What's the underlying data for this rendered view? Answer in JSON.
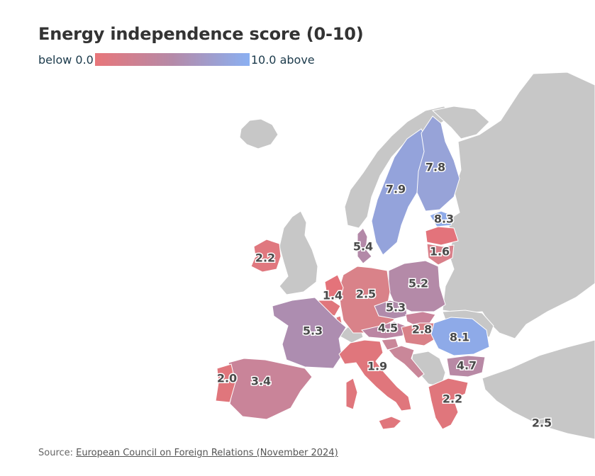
{
  "title": "Energy independence score (0-10)",
  "legend": {
    "min_label": "below 0.0",
    "max_label": "10.0 above",
    "min_color": "#e8767a",
    "mid_color": "#b58aa8",
    "max_color": "#8ab0f2"
  },
  "source": {
    "prefix": "Source: ",
    "link_text": "European Council on Foreign Relations (November 2024)"
  },
  "no_data_color": "#c7c7c7",
  "countries": [
    {
      "id": "ireland",
      "value": "2.2",
      "color": "#e0787f"
    },
    {
      "id": "denmark",
      "value": "5.4",
      "color": "#b389a8"
    },
    {
      "id": "sweden",
      "value": "7.9",
      "color": "#94a3db"
    },
    {
      "id": "finland",
      "value": "7.8",
      "color": "#97a3d8"
    },
    {
      "id": "estonia",
      "value": "8.3",
      "color": "#8eaae8"
    },
    {
      "id": "latvia",
      "value": "1.6",
      "color": "#e3737b"
    },
    {
      "id": "lithuania",
      "value": "",
      "color": "#d9808a"
    },
    {
      "id": "poland",
      "value": "5.2",
      "color": "#b48aa8"
    },
    {
      "id": "germany",
      "value": "2.5",
      "color": "#d98289"
    },
    {
      "id": "netherlands",
      "value": "1.4",
      "color": "#e4737a"
    },
    {
      "id": "belgium",
      "value": "",
      "color": "#e0767c"
    },
    {
      "id": "luxembourg",
      "value": "",
      "color": "#e0767c"
    },
    {
      "id": "france",
      "value": "5.3",
      "color": "#ad8db0"
    },
    {
      "id": "czechia",
      "value": "5.3",
      "color": "#b08bab"
    },
    {
      "id": "austria",
      "value": "4.5",
      "color": "#bb85a3"
    },
    {
      "id": "slovakia",
      "value": "",
      "color": "#c9839a"
    },
    {
      "id": "hungary",
      "value": "2.8",
      "color": "#d98188"
    },
    {
      "id": "slovenia",
      "value": "",
      "color": "#c98799"
    },
    {
      "id": "croatia",
      "value": "",
      "color": "#c98799"
    },
    {
      "id": "romania",
      "value": "8.1",
      "color": "#8eaae8"
    },
    {
      "id": "bulgaria",
      "value": "4.7",
      "color": "#b889a5"
    },
    {
      "id": "greece",
      "value": "2.2",
      "color": "#e0767c"
    },
    {
      "id": "italy",
      "value": "1.9",
      "color": "#e0767c"
    },
    {
      "id": "spain",
      "value": "3.4",
      "color": "#c98499"
    },
    {
      "id": "portugal",
      "value": "2.0",
      "color": "#e0767c"
    },
    {
      "id": "cyprus",
      "value": "2.5",
      "color": "#c7c7c7"
    }
  ]
}
